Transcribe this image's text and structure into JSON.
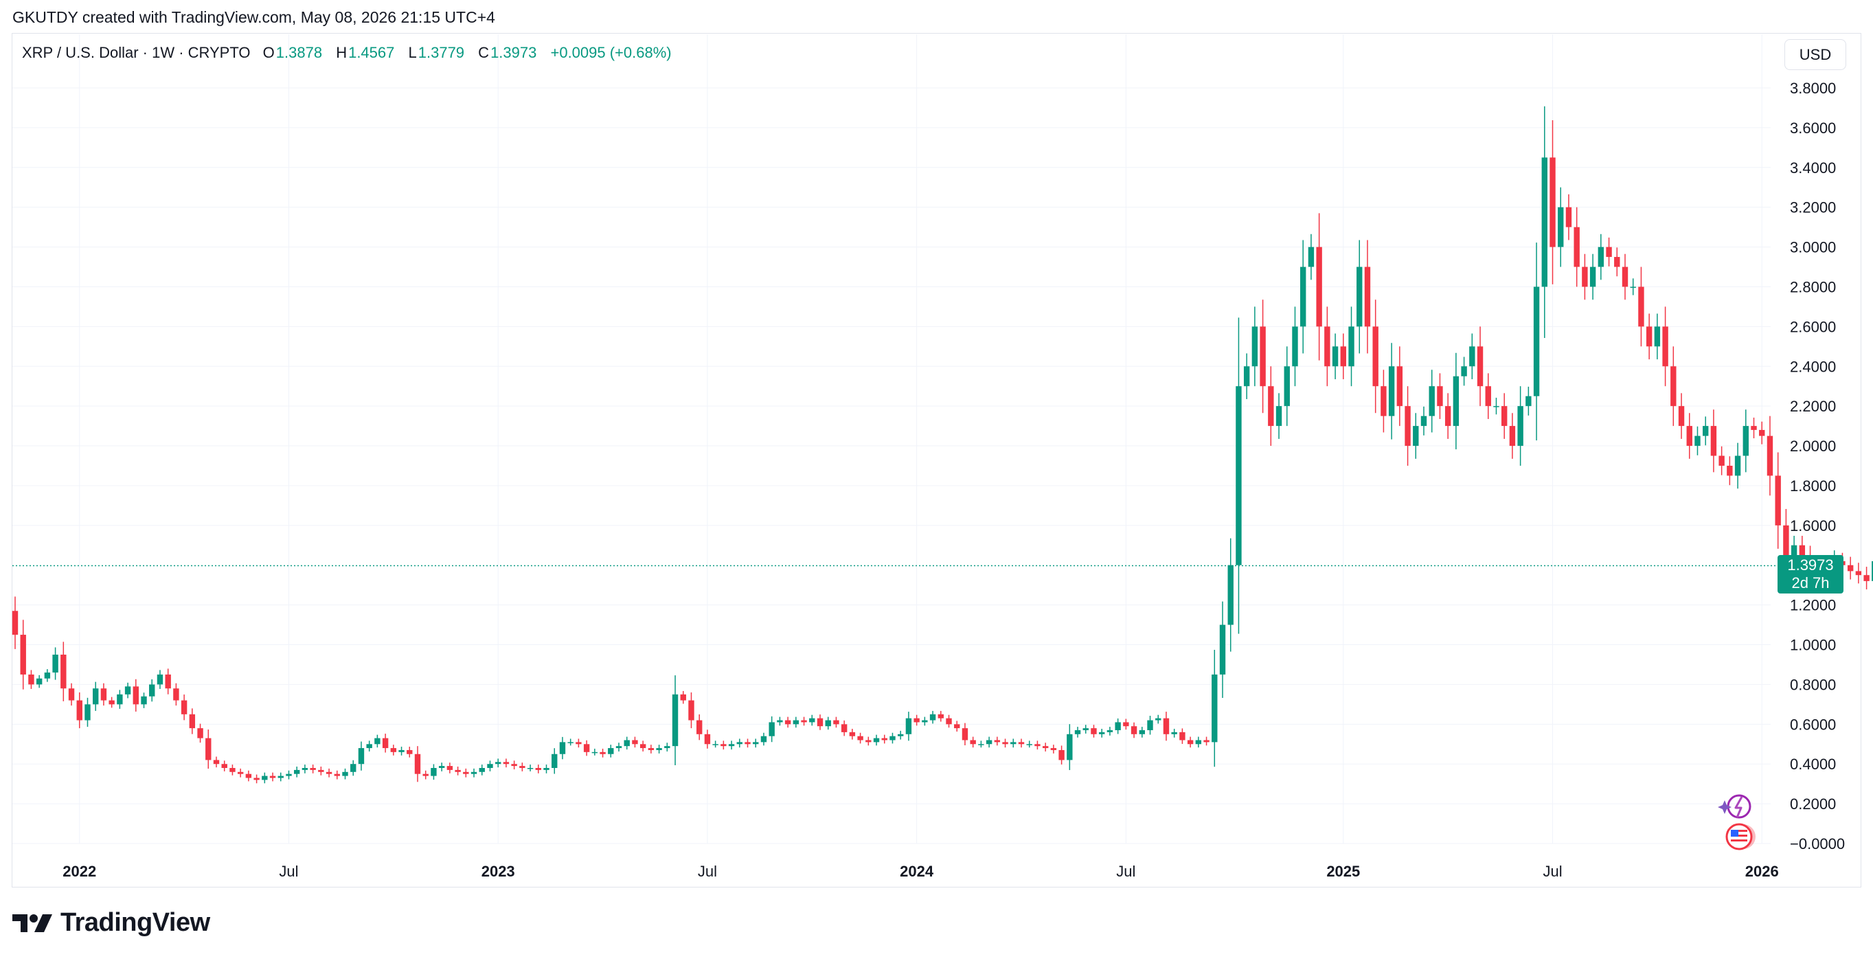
{
  "header": {
    "creator_line": "GKUTDY created with TradingView.com, May 08, 2026 21:15 UTC+4"
  },
  "legend": {
    "symbol": "XRP / U.S. Dollar · 1W · CRYPTO",
    "o_label": "O",
    "o_value": "1.3878",
    "h_label": "H",
    "h_value": "1.4567",
    "l_label": "L",
    "l_value": "1.3779",
    "c_label": "C",
    "c_value": "1.3973",
    "change": "+0.0095 (+0.68%)"
  },
  "currency_button": "USD",
  "last_price": {
    "value": "1.3973",
    "countdown": "2d 7h"
  },
  "footer": {
    "brand": "TradingView"
  },
  "colors": {
    "up": "#089981",
    "down": "#f23645",
    "grid": "#f0f3fa",
    "text": "#131722",
    "accent": "#089981"
  },
  "icons": [
    "lightning-sparkle-icon",
    "us-flag-icon",
    "tradingview-logo-icon"
  ],
  "chart_data": {
    "type": "candlestick",
    "interval": "1W",
    "ylim": [
      0,
      3.8
    ],
    "y_ticks": [
      "3.8000",
      "3.6000",
      "3.4000",
      "3.2000",
      "3.0000",
      "2.8000",
      "2.6000",
      "2.4000",
      "2.2000",
      "2.0000",
      "1.8000",
      "1.6000",
      "1.2000",
      "1.0000",
      "0.8000",
      "0.6000",
      "0.4000",
      "0.2000",
      "−0.0000"
    ],
    "x_ticks": [
      {
        "label": "2022",
        "week": 8,
        "bold": true
      },
      {
        "label": "Jul",
        "week": 34,
        "bold": false
      },
      {
        "label": "2023",
        "week": 60,
        "bold": true
      },
      {
        "label": "Jul",
        "week": 86,
        "bold": false
      },
      {
        "label": "2024",
        "week": 112,
        "bold": true
      },
      {
        "label": "Jul",
        "week": 138,
        "bold": false
      },
      {
        "label": "2025",
        "week": 165,
        "bold": true
      },
      {
        "label": "Jul",
        "week": 191,
        "bold": false
      },
      {
        "label": "2026",
        "week": 217,
        "bold": true
      }
    ],
    "last_close": 1.3973,
    "closes": [
      1.05,
      0.85,
      0.8,
      0.83,
      0.86,
      0.95,
      0.78,
      0.72,
      0.62,
      0.7,
      0.78,
      0.72,
      0.7,
      0.75,
      0.79,
      0.7,
      0.74,
      0.8,
      0.85,
      0.78,
      0.72,
      0.65,
      0.58,
      0.53,
      0.42,
      0.4,
      0.38,
      0.36,
      0.35,
      0.33,
      0.32,
      0.34,
      0.33,
      0.34,
      0.35,
      0.37,
      0.38,
      0.37,
      0.36,
      0.35,
      0.34,
      0.36,
      0.4,
      0.48,
      0.5,
      0.53,
      0.48,
      0.46,
      0.47,
      0.45,
      0.35,
      0.34,
      0.38,
      0.39,
      0.37,
      0.36,
      0.35,
      0.36,
      0.38,
      0.4,
      0.41,
      0.4,
      0.39,
      0.38,
      0.38,
      0.37,
      0.38,
      0.45,
      0.51,
      0.51,
      0.5,
      0.46,
      0.46,
      0.45,
      0.48,
      0.49,
      0.52,
      0.5,
      0.48,
      0.47,
      0.48,
      0.49,
      0.75,
      0.72,
      0.62,
      0.55,
      0.5,
      0.5,
      0.49,
      0.5,
      0.51,
      0.5,
      0.51,
      0.54,
      0.61,
      0.62,
      0.6,
      0.62,
      0.61,
      0.63,
      0.59,
      0.62,
      0.6,
      0.56,
      0.54,
      0.52,
      0.51,
      0.53,
      0.52,
      0.54,
      0.55,
      0.63,
      0.61,
      0.62,
      0.65,
      0.63,
      0.6,
      0.58,
      0.52,
      0.5,
      0.5,
      0.52,
      0.51,
      0.5,
      0.51,
      0.5,
      0.5,
      0.49,
      0.48,
      0.47,
      0.42,
      0.55,
      0.57,
      0.58,
      0.55,
      0.56,
      0.57,
      0.61,
      0.59,
      0.55,
      0.57,
      0.62,
      0.63,
      0.55,
      0.56,
      0.52,
      0.5,
      0.52,
      0.51,
      0.85,
      1.1,
      1.4,
      2.3,
      2.4,
      2.6,
      2.3,
      2.1,
      2.2,
      2.4,
      2.6,
      2.9,
      3.0,
      2.6,
      2.4,
      2.5,
      2.4,
      2.6,
      2.9,
      2.6,
      2.3,
      2.15,
      2.4,
      2.2,
      2.0,
      2.1,
      2.15,
      2.3,
      2.2,
      2.1,
      2.35,
      2.4,
      2.5,
      2.3,
      2.2,
      2.2,
      2.1,
      2.0,
      2.2,
      2.25,
      2.8,
      3.45,
      3.0,
      3.2,
      3.1,
      2.9,
      2.8,
      2.9,
      3.0,
      2.95,
      2.9,
      2.8,
      2.8,
      2.6,
      2.5,
      2.6,
      2.4,
      2.2,
      2.1,
      2.0,
      2.05,
      2.1,
      1.95,
      1.9,
      1.85,
      1.95,
      2.1,
      2.08,
      2.05,
      1.85,
      1.6,
      1.45,
      1.5,
      1.45,
      1.4,
      1.35,
      1.35,
      1.42,
      1.4,
      1.37,
      1.35,
      1.32,
      1.42,
      1.45,
      1.39,
      1.4
    ]
  }
}
